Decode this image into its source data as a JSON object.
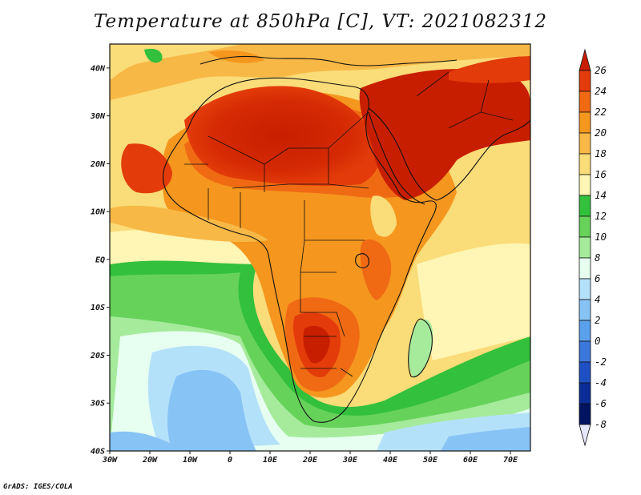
{
  "title": "Temperature at 850hPa [C], VT: 2021082312",
  "footer": "GrADS: IGES/COLA",
  "map": {
    "variable": "Temperature at 850hPa",
    "units": "C",
    "valid_time": "2021082312",
    "lon_range": [
      -30,
      75
    ],
    "lat_range": [
      -40,
      45
    ],
    "lon_ticks": [
      "30W",
      "20W",
      "10W",
      "0",
      "10E",
      "20E",
      "30E",
      "40E",
      "50E",
      "60E",
      "70E"
    ],
    "lat_ticks": [
      "40N",
      "30N",
      "20N",
      "10N",
      "EQ",
      "10S",
      "20S",
      "30S",
      "40S"
    ]
  },
  "colorbar": {
    "labels": [
      "26",
      "24",
      "22",
      "20",
      "18",
      "16",
      "14",
      "12",
      "10",
      "8",
      "6",
      "4",
      "2",
      "0",
      "-2",
      "-4",
      "-6",
      "-8"
    ],
    "colors": [
      "#c81e00",
      "#e33c0a",
      "#f06a14",
      "#f5961e",
      "#f8b846",
      "#fadc78",
      "#fff5b4",
      "#33c03c",
      "#66d25a",
      "#a5eb9b",
      "#e6fff0",
      "#b4e1fa",
      "#87c3f5",
      "#5aa0eb",
      "#3c78dc",
      "#1e50c3",
      "#0a2d96",
      "#001462",
      "#e6e6fa"
    ]
  },
  "icons": {
    "map_land": "africa-outline-icon"
  }
}
